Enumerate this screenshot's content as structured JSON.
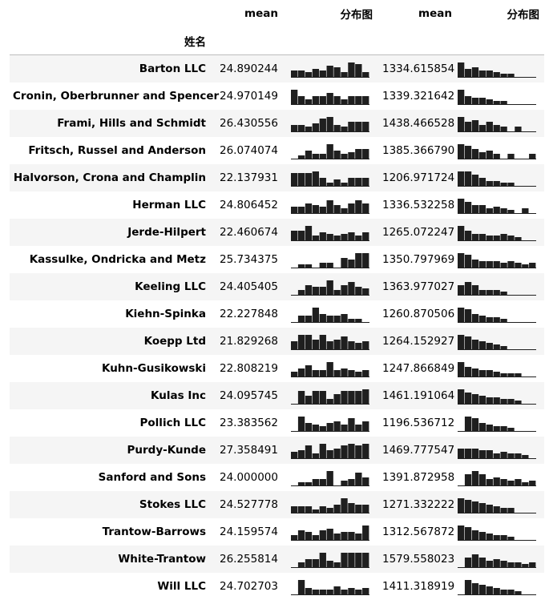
{
  "table": {
    "header_row1": [
      "",
      "mean",
      "分布图",
      "mean",
      "分布图"
    ],
    "index_label": "姓名",
    "rows": [
      {
        "name": "Barton LLC",
        "mean1": "24.890244",
        "mean2": "1334.615854",
        "hist1": [
          0.4,
          0.4,
          0.3,
          0.5,
          0.4,
          0.7,
          0.6,
          0.3,
          0.9,
          0.8,
          0.3
        ],
        "hist2": [
          0.9,
          0.5,
          0.6,
          0.4,
          0.4,
          0.3,
          0.2,
          0.2,
          0.0,
          0.0,
          0.0
        ]
      },
      {
        "name": "Cronin, Oberbrunner and Spencer",
        "mean1": "24.970149",
        "mean2": "1339.321642",
        "hist1": [
          0.9,
          0.5,
          0.3,
          0.5,
          0.5,
          0.7,
          0.5,
          0.3,
          0.5,
          0.5,
          0.5
        ],
        "hist2": [
          0.9,
          0.5,
          0.4,
          0.4,
          0.3,
          0.2,
          0.2,
          0.0,
          0.0,
          0.0,
          0.0
        ]
      },
      {
        "name": "Frami, Hills and Schmidt",
        "mean1": "26.430556",
        "mean2": "1438.466528",
        "hist1": [
          0.4,
          0.4,
          0.3,
          0.5,
          0.8,
          0.9,
          0.4,
          0.3,
          0.6,
          0.6,
          0.6
        ],
        "hist2": [
          0.9,
          0.6,
          0.7,
          0.4,
          0.6,
          0.4,
          0.3,
          0.0,
          0.3,
          0.0,
          0.0
        ]
      },
      {
        "name": "Fritsch, Russel and Anderson",
        "mean1": "26.074074",
        "mean2": "1385.366790",
        "hist1": [
          0.0,
          0.2,
          0.5,
          0.3,
          0.3,
          0.9,
          0.5,
          0.3,
          0.4,
          0.6,
          0.6
        ],
        "hist2": [
          0.9,
          0.8,
          0.6,
          0.4,
          0.5,
          0.3,
          0.0,
          0.3,
          0.0,
          0.0,
          0.3
        ]
      },
      {
        "name": "Halvorson, Crona and Champlin",
        "mean1": "22.137931",
        "mean2": "1206.971724",
        "hist1": [
          0.8,
          0.8,
          0.8,
          0.9,
          0.5,
          0.2,
          0.4,
          0.2,
          0.5,
          0.5,
          0.5
        ],
        "hist2": [
          0.9,
          0.9,
          0.7,
          0.5,
          0.3,
          0.3,
          0.2,
          0.2,
          0.0,
          0.0,
          0.0
        ]
      },
      {
        "name": "Herman LLC",
        "mean1": "24.806452",
        "mean2": "1336.532258",
        "hist1": [
          0.4,
          0.4,
          0.6,
          0.5,
          0.4,
          0.8,
          0.5,
          0.3,
          0.6,
          0.8,
          0.6
        ],
        "hist2": [
          0.9,
          0.7,
          0.5,
          0.5,
          0.3,
          0.4,
          0.3,
          0.2,
          0.0,
          0.3,
          0.0
        ]
      },
      {
        "name": "Jerde-Hilpert",
        "mean1": "22.460674",
        "mean2": "1265.072247",
        "hist1": [
          0.6,
          0.6,
          0.9,
          0.3,
          0.5,
          0.4,
          0.3,
          0.4,
          0.5,
          0.3,
          0.5
        ],
        "hist2": [
          0.9,
          0.6,
          0.4,
          0.4,
          0.3,
          0.3,
          0.4,
          0.3,
          0.2,
          0.0,
          0.0
        ]
      },
      {
        "name": "Kassulke, Ondricka and Metz",
        "mean1": "25.734375",
        "mean2": "1350.797969",
        "hist1": [
          0.0,
          0.2,
          0.2,
          0.0,
          0.3,
          0.3,
          0.0,
          0.6,
          0.5,
          0.9,
          0.9
        ],
        "hist2": [
          0.9,
          0.8,
          0.5,
          0.4,
          0.4,
          0.4,
          0.3,
          0.4,
          0.3,
          0.2,
          0.3
        ]
      },
      {
        "name": "Keeling LLC",
        "mean1": "24.405405",
        "mean2": "1363.977027",
        "hist1": [
          0.0,
          0.3,
          0.6,
          0.5,
          0.5,
          0.9,
          0.3,
          0.6,
          0.8,
          0.5,
          0.4
        ],
        "hist2": [
          0.6,
          0.8,
          0.6,
          0.3,
          0.3,
          0.3,
          0.2,
          0.0,
          0.0,
          0.0,
          0.0
        ]
      },
      {
        "name": "Kiehn-Spinka",
        "mean1": "22.227848",
        "mean2": "1260.870506",
        "hist1": [
          0.0,
          0.4,
          0.4,
          0.9,
          0.5,
          0.4,
          0.4,
          0.5,
          0.2,
          0.2,
          0.0
        ],
        "hist2": [
          0.9,
          0.8,
          0.5,
          0.4,
          0.3,
          0.3,
          0.2,
          0.0,
          0.0,
          0.0,
          0.0
        ]
      },
      {
        "name": "Koepp Ltd",
        "mean1": "21.829268",
        "mean2": "1264.152927",
        "hist1": [
          0.5,
          0.9,
          0.9,
          0.6,
          0.9,
          0.5,
          0.6,
          0.8,
          0.5,
          0.4,
          0.5
        ],
        "hist2": [
          0.9,
          0.8,
          0.6,
          0.5,
          0.4,
          0.3,
          0.2,
          0.0,
          0.0,
          0.0,
          0.0
        ]
      },
      {
        "name": "Kuhn-Gusikowski",
        "mean1": "22.808219",
        "mean2": "1247.866849",
        "hist1": [
          0.3,
          0.5,
          0.7,
          0.4,
          0.4,
          0.9,
          0.4,
          0.5,
          0.4,
          0.3,
          0.4
        ],
        "hist2": [
          0.9,
          0.6,
          0.5,
          0.4,
          0.4,
          0.3,
          0.2,
          0.2,
          0.2,
          0.0,
          0.0
        ]
      },
      {
        "name": "Kulas Inc",
        "mean1": "24.095745",
        "mean2": "1461.191064",
        "hist1": [
          0.0,
          0.8,
          0.5,
          0.8,
          0.8,
          0.3,
          0.6,
          0.8,
          0.8,
          0.8,
          0.9
        ],
        "hist2": [
          0.9,
          0.7,
          0.6,
          0.5,
          0.4,
          0.4,
          0.3,
          0.3,
          0.2,
          0.0,
          0.0
        ]
      },
      {
        "name": "Pollich LLC",
        "mean1": "23.383562",
        "mean2": "1196.536712",
        "hist1": [
          0.0,
          0.9,
          0.5,
          0.4,
          0.3,
          0.5,
          0.6,
          0.4,
          0.8,
          0.4,
          0.6
        ],
        "hist2": [
          0.0,
          0.9,
          0.8,
          0.5,
          0.4,
          0.3,
          0.3,
          0.2,
          0.0,
          0.0,
          0.0
        ]
      },
      {
        "name": "Purdy-Kunde",
        "mean1": "27.358491",
        "mean2": "1469.777547",
        "hist1": [
          0.4,
          0.5,
          0.8,
          0.3,
          0.9,
          0.5,
          0.6,
          0.8,
          0.9,
          0.8,
          0.9
        ],
        "hist2": [
          0.6,
          0.6,
          0.6,
          0.5,
          0.5,
          0.3,
          0.4,
          0.3,
          0.3,
          0.2,
          0.0
        ]
      },
      {
        "name": "Sanford and Sons",
        "mean1": "24.000000",
        "mean2": "1391.872958",
        "hist1": [
          0.0,
          0.2,
          0.2,
          0.4,
          0.4,
          0.9,
          0.0,
          0.3,
          0.4,
          0.8,
          0.5
        ],
        "hist2": [
          0.0,
          0.7,
          0.9,
          0.7,
          0.4,
          0.5,
          0.4,
          0.3,
          0.4,
          0.2,
          0.3
        ]
      },
      {
        "name": "Stokes LLC",
        "mean1": "24.527778",
        "mean2": "1271.332222",
        "hist1": [
          0.4,
          0.4,
          0.4,
          0.2,
          0.4,
          0.3,
          0.5,
          0.9,
          0.6,
          0.5,
          0.5
        ],
        "hist2": [
          0.9,
          0.8,
          0.7,
          0.6,
          0.5,
          0.4,
          0.3,
          0.3,
          0.0,
          0.0,
          0.0
        ]
      },
      {
        "name": "Trantow-Barrows",
        "mean1": "24.159574",
        "mean2": "1312.567872",
        "hist1": [
          0.3,
          0.6,
          0.5,
          0.3,
          0.6,
          0.7,
          0.4,
          0.5,
          0.5,
          0.4,
          0.9
        ],
        "hist2": [
          0.9,
          0.8,
          0.6,
          0.5,
          0.4,
          0.3,
          0.3,
          0.2,
          0.0,
          0.0,
          0.0
        ]
      },
      {
        "name": "White-Trantow",
        "mean1": "26.255814",
        "mean2": "1579.558023",
        "hist1": [
          0.0,
          0.3,
          0.5,
          0.5,
          0.9,
          0.4,
          0.3,
          0.9,
          0.9,
          0.9,
          0.9
        ],
        "hist2": [
          0.0,
          0.6,
          0.8,
          0.6,
          0.4,
          0.5,
          0.4,
          0.3,
          0.3,
          0.2,
          0.3
        ]
      },
      {
        "name": "Will LLC",
        "mean1": "24.702703",
        "mean2": "1411.318919",
        "hist1": [
          0.0,
          0.9,
          0.4,
          0.3,
          0.3,
          0.3,
          0.5,
          0.3,
          0.4,
          0.3,
          0.4
        ],
        "hist2": [
          0.0,
          0.9,
          0.7,
          0.6,
          0.5,
          0.4,
          0.3,
          0.3,
          0.2,
          0.0,
          0.0
        ]
      }
    ]
  },
  "colors": {
    "bar": "#1f1f1f",
    "stripe": "#f5f5f5",
    "rule": "#bdbdbd"
  }
}
